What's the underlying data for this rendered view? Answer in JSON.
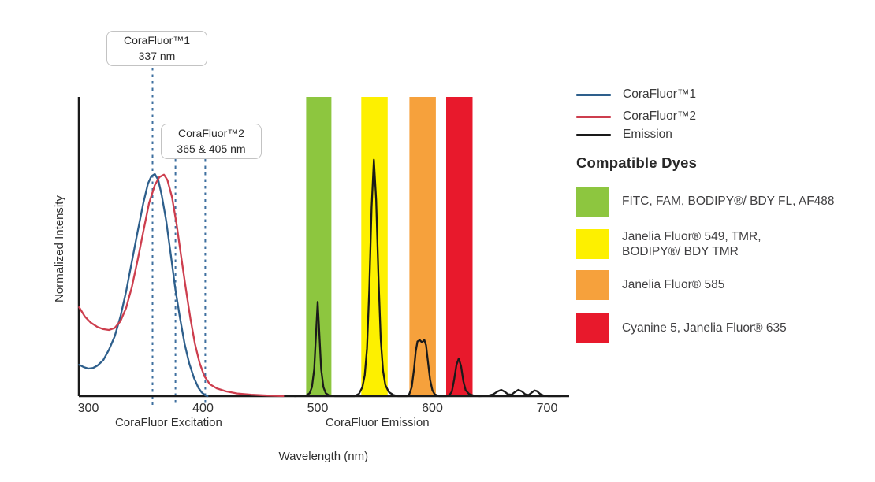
{
  "legend": {
    "items": [
      {
        "label": "CoraFluor™1",
        "color": "#2e5f8c"
      },
      {
        "label": "CoraFluor™2",
        "color": "#cd3e4e"
      },
      {
        "label": "Emission",
        "color": "#1a1a1a"
      }
    ]
  },
  "compatible_dyes": {
    "heading": "Compatible Dyes",
    "items": [
      {
        "color": "#8dc63f",
        "label": "FITC, FAM, BODIPY®/ BDY FL, AF488"
      },
      {
        "color": "#fdf000",
        "label": "Janelia Fluor® 549, TMR,\nBODIPY®/ BDY TMR"
      },
      {
        "color": "#f6a13c",
        "label": "Janelia Fluor® 585"
      },
      {
        "color": "#e8192c",
        "label": "Cyanine 5, Janelia Fluor® 635"
      }
    ]
  },
  "chart_data": {
    "type": "line",
    "title": "",
    "xlabel": "Wavelength (nm)",
    "ylabel": "Normalized Intensity",
    "x_ticks": [
      300,
      400,
      500,
      600,
      700
    ],
    "x_range_nm": [
      292,
      719
    ],
    "ylim": [
      0,
      1
    ],
    "grid": false,
    "legend_position": "right",
    "region_labels": [
      {
        "text": "CoraFluor Excitation",
        "center_nm": 370
      },
      {
        "text": "CoraFluor Emission",
        "center_nm": 552
      }
    ],
    "annotations": [
      {
        "title": "CoraFluor™1",
        "value": "337 nm",
        "dashed_lines_nm": [
          356
        ]
      },
      {
        "title": "CoraFluor™2",
        "value": "365 & 405 nm",
        "dashed_lines_nm": [
          376,
          402
        ]
      }
    ],
    "dashed_line_color": "#3e6f9f",
    "bands": [
      {
        "name": "band-green",
        "color": "#8dc63f",
        "from_nm": 490,
        "to_nm": 512
      },
      {
        "name": "band-yellow",
        "color": "#fdf000",
        "from_nm": 538,
        "to_nm": 561
      },
      {
        "name": "band-orange",
        "color": "#f6a13c",
        "from_nm": 580,
        "to_nm": 603
      },
      {
        "name": "band-red",
        "color": "#e8192c",
        "from_nm": 612,
        "to_nm": 635
      }
    ],
    "series": [
      {
        "name": "CoraFluor™1",
        "kind": "excitation-1",
        "color": "#2e5f8c",
        "points": [
          [
            292,
            0.105
          ],
          [
            296,
            0.097
          ],
          [
            300,
            0.092
          ],
          [
            304,
            0.094
          ],
          [
            308,
            0.102
          ],
          [
            313,
            0.12
          ],
          [
            318,
            0.155
          ],
          [
            323,
            0.2
          ],
          [
            328,
            0.265
          ],
          [
            333,
            0.35
          ],
          [
            338,
            0.45
          ],
          [
            343,
            0.55
          ],
          [
            348,
            0.645
          ],
          [
            352,
            0.71
          ],
          [
            355,
            0.735
          ],
          [
            358,
            0.742
          ],
          [
            361,
            0.722
          ],
          [
            364,
            0.672
          ],
          [
            368,
            0.585
          ],
          [
            372,
            0.47
          ],
          [
            376,
            0.355
          ],
          [
            380,
            0.26
          ],
          [
            384,
            0.175
          ],
          [
            388,
            0.11
          ],
          [
            392,
            0.062
          ],
          [
            396,
            0.028
          ],
          [
            399,
            0.012
          ],
          [
            402,
            0.003
          ],
          [
            404,
            0
          ]
        ]
      },
      {
        "name": "CoraFluor™2",
        "kind": "excitation-2",
        "color": "#cd3e4e",
        "points": [
          [
            292,
            0.297
          ],
          [
            297,
            0.266
          ],
          [
            302,
            0.246
          ],
          [
            308,
            0.231
          ],
          [
            313,
            0.224
          ],
          [
            318,
            0.221
          ],
          [
            323,
            0.228
          ],
          [
            328,
            0.25
          ],
          [
            333,
            0.295
          ],
          [
            338,
            0.365
          ],
          [
            343,
            0.455
          ],
          [
            348,
            0.55
          ],
          [
            353,
            0.645
          ],
          [
            358,
            0.705
          ],
          [
            362,
            0.732
          ],
          [
            366,
            0.74
          ],
          [
            369,
            0.722
          ],
          [
            373,
            0.665
          ],
          [
            377,
            0.575
          ],
          [
            381,
            0.465
          ],
          [
            385,
            0.36
          ],
          [
            389,
            0.26
          ],
          [
            393,
            0.175
          ],
          [
            397,
            0.112
          ],
          [
            401,
            0.068
          ],
          [
            406,
            0.04
          ],
          [
            412,
            0.026
          ],
          [
            420,
            0.016
          ],
          [
            430,
            0.009
          ],
          [
            442,
            0.005
          ],
          [
            456,
            0.002
          ],
          [
            470,
            0
          ]
        ]
      },
      {
        "name": "Emission",
        "kind": "emission",
        "color": "#1a1a1a",
        "points": [
          [
            480,
            0
          ],
          [
            490,
            0.002
          ],
          [
            493,
            0.01
          ],
          [
            495,
            0.03
          ],
          [
            497,
            0.09
          ],
          [
            499,
            0.24
          ],
          [
            500,
            0.315
          ],
          [
            501,
            0.24
          ],
          [
            503,
            0.09
          ],
          [
            505,
            0.03
          ],
          [
            507,
            0.01
          ],
          [
            510,
            0.002
          ],
          [
            515,
            0
          ],
          [
            532,
            0
          ],
          [
            536,
            0.008
          ],
          [
            539,
            0.03
          ],
          [
            541,
            0.07
          ],
          [
            543,
            0.16
          ],
          [
            545,
            0.36
          ],
          [
            547,
            0.63
          ],
          [
            549,
            0.79
          ],
          [
            551,
            0.655
          ],
          [
            553,
            0.4
          ],
          [
            555,
            0.19
          ],
          [
            557,
            0.085
          ],
          [
            559,
            0.038
          ],
          [
            562,
            0.014
          ],
          [
            566,
            0.004
          ],
          [
            570,
            0
          ],
          [
            578,
            0
          ],
          [
            580,
            0.008
          ],
          [
            582,
            0.03
          ],
          [
            584,
            0.09
          ],
          [
            585.5,
            0.15
          ],
          [
            587,
            0.183
          ],
          [
            589,
            0.187
          ],
          [
            591,
            0.18
          ],
          [
            593,
            0.188
          ],
          [
            594.5,
            0.17
          ],
          [
            596,
            0.12
          ],
          [
            598,
            0.055
          ],
          [
            600,
            0.02
          ],
          [
            602,
            0.006
          ],
          [
            606,
            0
          ],
          [
            612,
            0
          ],
          [
            615,
            0.004
          ],
          [
            617,
            0.015
          ],
          [
            619,
            0.055
          ],
          [
            621,
            0.105
          ],
          [
            623,
            0.126
          ],
          [
            625,
            0.1
          ],
          [
            627,
            0.05
          ],
          [
            629,
            0.02
          ],
          [
            632,
            0.007
          ],
          [
            636,
            0.002
          ],
          [
            641,
            0
          ],
          [
            648,
            0.001
          ],
          [
            653,
            0.006
          ],
          [
            657,
            0.016
          ],
          [
            660,
            0.021
          ],
          [
            663,
            0.015
          ],
          [
            666,
            0.006
          ],
          [
            669,
            0.005
          ],
          [
            672,
            0.014
          ],
          [
            675,
            0.021
          ],
          [
            678,
            0.016
          ],
          [
            681,
            0.006
          ],
          [
            684,
            0.004
          ],
          [
            686,
            0.01
          ],
          [
            689,
            0.019
          ],
          [
            691,
            0.017
          ],
          [
            694,
            0.007
          ],
          [
            697,
            0.002
          ],
          [
            701,
            0
          ],
          [
            712,
            0
          ]
        ]
      }
    ]
  }
}
